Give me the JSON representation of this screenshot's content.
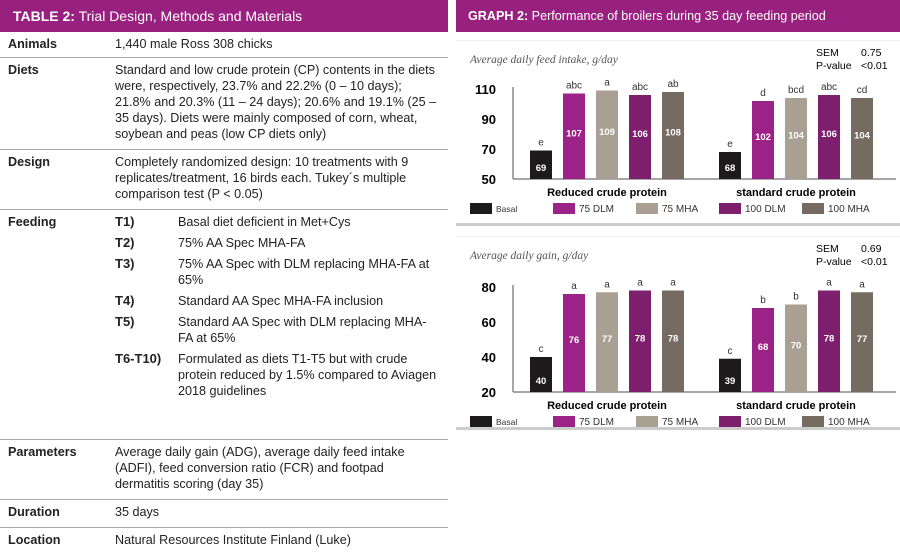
{
  "table": {
    "title_bold": "TABLE 2:",
    "title_rest": " Trial Design, Methods and Materials",
    "rows": [
      {
        "label": "Animals",
        "value": "1,440 male Ross 308 chicks"
      },
      {
        "label": "Diets",
        "value": "Standard and low crude protein (CP) contents in the diets were, respectively, 23.7% and 22.2% (0 – 10 days); 21.8% and 20.3% (11 – 24 days); 20.6% and 19.1% (25 – 35 days). Diets were mainly composed of corn, wheat, soybean and peas (low CP diets only)"
      },
      {
        "label": "Design",
        "value": "Completely randomized design: 10 treatments with 9 replicates/treatment, 16 birds each. Tukey´s multiple comparison test (P < 0.05)"
      },
      {
        "label": "Feeding",
        "items": [
          {
            "t": "T1)",
            "text": "Basal diet deficient in Met+Cys"
          },
          {
            "t": "T2)",
            "text": "75% AA Spec MHA-FA"
          },
          {
            "t": "T3)",
            "text": "75% AA Spec with DLM replacing MHA-FA at 65%"
          },
          {
            "t": "T4)",
            "text": "Standard AA Spec MHA-FA inclusion"
          },
          {
            "t": "T5)",
            "text": "Standard AA Spec with DLM replacing MHA-FA at 65%"
          },
          {
            "t": "T6-T10)",
            "text": "Formulated as diets T1-T5 but with crude protein reduced by 1.5% compared to Aviagen 2018 guidelines"
          }
        ]
      },
      {
        "label": "Parameters",
        "value": "Average daily gain (ADG), average daily feed intake (ADFI), feed conversion ratio (FCR) and footpad dermatitis scoring (day 35)"
      },
      {
        "label": "Duration",
        "value": "35 days"
      },
      {
        "label": "Location",
        "value": "Natural Resources Institute Finland (Luke)"
      }
    ]
  },
  "graph": {
    "title_bold": "GRAPH 2:",
    "title_rest": " Performance of broilers during 35 day feeding period"
  },
  "chart_data": [
    {
      "type": "bar",
      "title": "Average daily feed intake, g/day",
      "sem_label": "SEM",
      "sem": "0.75",
      "p_label": "P-value",
      "p": "<0.01",
      "ylim": [
        50,
        110
      ],
      "yticks": [
        "50",
        "70",
        "90",
        "110"
      ],
      "categories": [
        "Reduced crude protein",
        "standard crude protein"
      ],
      "series": [
        {
          "name": "Basal",
          "color": "#1c1a1b",
          "values": [
            69,
            68
          ],
          "letters": [
            "e",
            "e"
          ]
        },
        {
          "name": "75 DLM",
          "color": "#9b2387",
          "values": [
            107,
            102
          ],
          "letters": [
            "abc",
            "d"
          ]
        },
        {
          "name": "75 MHA",
          "color": "#a99f93",
          "values": [
            109,
            104
          ],
          "letters": [
            "a",
            "bcd"
          ]
        },
        {
          "name": "100 DLM",
          "color": "#7d1f6c",
          "values": [
            106,
            106
          ],
          "letters": [
            "abc",
            "abc"
          ]
        },
        {
          "name": "100 MHA",
          "color": "#766b61",
          "values": [
            108,
            104
          ],
          "letters": [
            "ab",
            "cd"
          ]
        }
      ]
    },
    {
      "type": "bar",
      "title": "Average daily gain, g/day",
      "sem_label": "SEM",
      "sem": "0.69",
      "p_label": "P-value",
      "p": "<0.01",
      "ylim": [
        20,
        80
      ],
      "yticks": [
        "20",
        "40",
        "60",
        "80"
      ],
      "categories": [
        "Reduced crude protein",
        "standard crude protein"
      ],
      "series": [
        {
          "name": "Basal",
          "color": "#1c1a1b",
          "values": [
            40,
            39
          ],
          "letters": [
            "c",
            "c"
          ]
        },
        {
          "name": "75 DLM",
          "color": "#9b2387",
          "values": [
            76,
            68
          ],
          "letters": [
            "a",
            "b"
          ]
        },
        {
          "name": "75 MHA",
          "color": "#a99f93",
          "values": [
            77,
            70
          ],
          "letters": [
            "a",
            "b"
          ]
        },
        {
          "name": "100 DLM",
          "color": "#7d1f6c",
          "values": [
            78,
            78
          ],
          "letters": [
            "a",
            "a"
          ]
        },
        {
          "name": "100 MHA",
          "color": "#766b61",
          "values": [
            78,
            77
          ],
          "letters": [
            "a",
            "a"
          ]
        }
      ]
    }
  ]
}
